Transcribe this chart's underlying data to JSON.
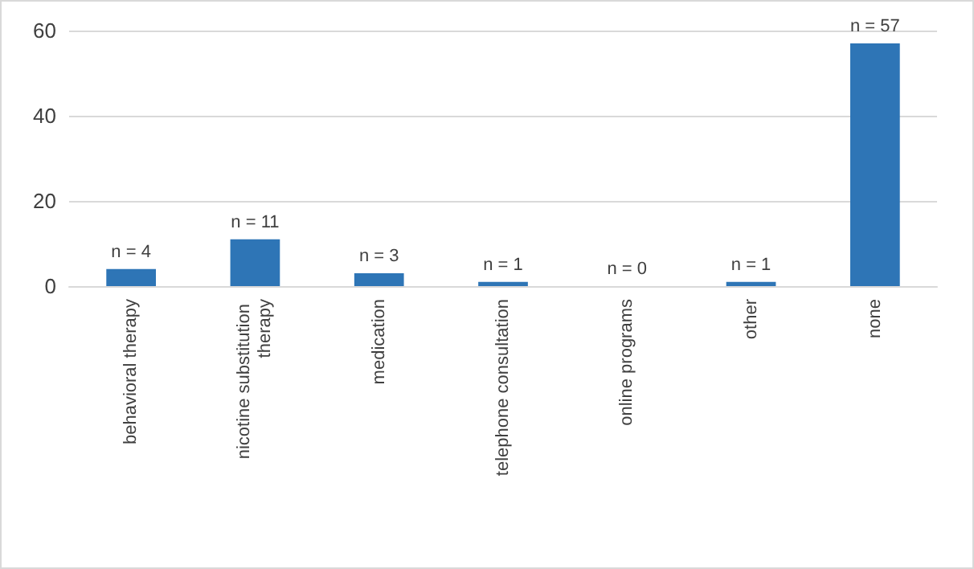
{
  "chart_data": {
    "type": "bar",
    "categories": [
      "behavioral therapy",
      "nicotine substitution therapy",
      "medication",
      "telephone consultation",
      "online programs",
      "other",
      "none"
    ],
    "values": [
      4,
      11,
      3,
      1,
      0,
      1,
      57
    ],
    "value_labels": [
      "n = 4",
      "n = 11",
      "n = 3",
      "n = 1",
      "n = 0",
      "n = 1",
      "n = 57"
    ],
    "color": "#2e75b6",
    "ylim": [
      0,
      60
    ],
    "yticks": [
      0,
      20,
      40,
      60
    ],
    "grid": "y"
  }
}
